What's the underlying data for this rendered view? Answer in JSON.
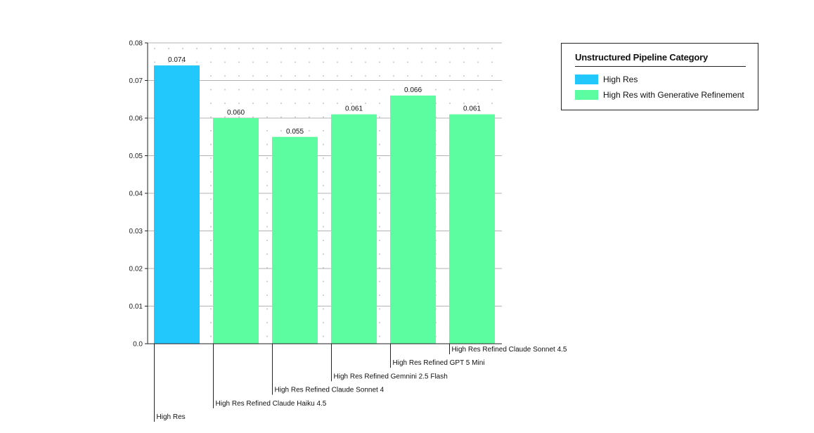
{
  "chart_data": {
    "type": "bar",
    "title": "",
    "xlabel": "",
    "ylabel": "",
    "ylim": [
      0,
      0.08
    ],
    "yticks": [
      "0.0",
      "0.01",
      "0.02",
      "0.03",
      "0.04",
      "0.05",
      "0.06",
      "0.07",
      "0.08"
    ],
    "categories": [
      "High Res",
      "High Res Refined Claude Haiku 4.5",
      "High Res Refined Claude Sonnet 4",
      "High Res Refined Gemnini 2.5 Flash",
      "High Res Refined GPT 5 Mini",
      "High Res Refined Claude Sonnet 4.5"
    ],
    "values": [
      0.074,
      0.06,
      0.055,
      0.061,
      0.066,
      0.061
    ],
    "value_labels": [
      "0.074",
      "0.060",
      "0.055",
      "0.061",
      "0.066",
      "0.061"
    ],
    "bar_groups": [
      0,
      1,
      1,
      1,
      1,
      1
    ],
    "legend": {
      "title": "Unstructured Pipeline Category",
      "placement": "top-right",
      "entries": [
        {
          "label": "High Res",
          "color": "#22c7fb"
        },
        {
          "label": "High Res with Generative Refinement",
          "color": "#5cfca0"
        }
      ]
    }
  }
}
